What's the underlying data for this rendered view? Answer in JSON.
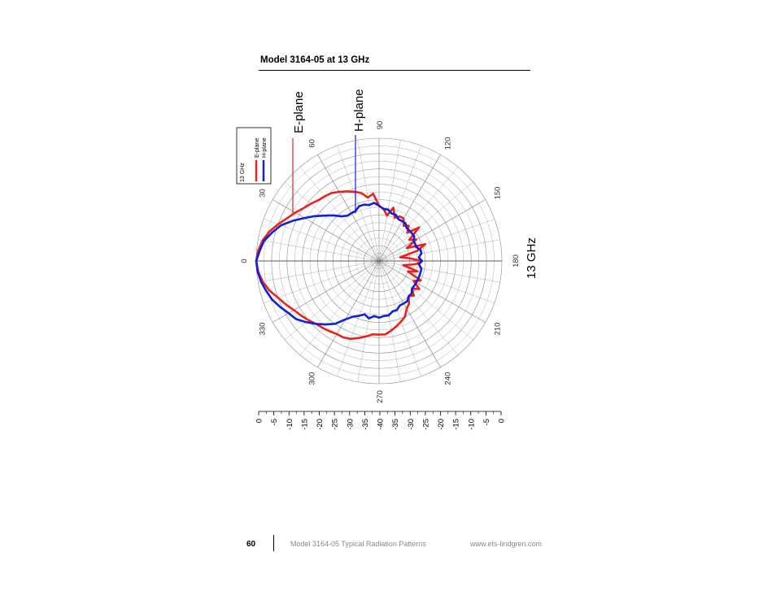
{
  "header": {
    "title": "Model 3164-05 at 13 GHz"
  },
  "footer": {
    "page_number": "60",
    "document": "Model 3164-05 Typical Radiation Patterns",
    "url": "www.ets-lindgren.com"
  },
  "colors": {
    "e_plane": "#e8231c",
    "h_plane": "#1220d8",
    "grid": "#8c8c8c"
  },
  "chart_data": {
    "type": "polar",
    "frequency_label": "13 GHz",
    "legend": {
      "title": "13 GHz",
      "entries": [
        "E-plane",
        "H-plane"
      ],
      "placement": "top-left"
    },
    "callouts": [
      "E-plane",
      "H-plane"
    ],
    "angle_labels": [
      "0",
      "30",
      "60",
      "90",
      "120",
      "150",
      "180",
      "210",
      "240",
      "270",
      "300",
      "330"
    ],
    "scale_labels": [
      "0",
      "-5",
      "-10",
      "-15",
      "-20",
      "-25",
      "-30",
      "-35",
      "-40",
      "-35",
      "-30",
      "-25",
      "-20",
      "-15",
      "-10",
      "-5",
      "0"
    ],
    "r_range_db": [
      -40,
      0
    ],
    "angle_step_deg": 10,
    "series": [
      {
        "name": "E-plane",
        "color": "#e8231c",
        "angles": [
          0,
          5,
          10,
          15,
          20,
          25,
          30,
          35,
          40,
          45,
          50,
          55,
          60,
          65,
          70,
          75,
          80,
          85,
          90,
          95,
          100,
          105,
          110,
          115,
          120,
          125,
          130,
          135,
          140,
          145,
          150,
          155,
          160,
          165,
          170,
          175,
          180,
          185,
          190,
          195,
          200,
          205,
          210,
          215,
          220,
          225,
          230,
          235,
          240,
          245,
          250,
          255,
          260,
          265,
          270,
          275,
          280,
          285,
          290,
          295,
          300,
          305,
          310,
          315,
          320,
          325,
          330,
          335,
          340,
          345,
          350,
          355
        ],
        "values_db": [
          0,
          -0.5,
          -1.5,
          -3,
          -5,
          -7,
          -8.5,
          -10,
          -11,
          -12,
          -12.5,
          -13,
          -14,
          -15,
          -16,
          -17,
          -19,
          -18,
          -22,
          -23,
          -25,
          -22,
          -25,
          -24,
          -24,
          -26,
          -25,
          -27,
          -23,
          -28,
          -26,
          -30,
          -24,
          -27,
          -33,
          -30,
          -26,
          -28,
          -32,
          -27,
          -30,
          -25,
          -27,
          -24,
          -26,
          -24,
          -25,
          -23,
          -22,
          -20,
          -19,
          -18,
          -17,
          -16,
          -16,
          -16,
          -15,
          -14,
          -13,
          -12.5,
          -12.5,
          -12,
          -11.5,
          -11,
          -10,
          -9,
          -8,
          -6.5,
          -5,
          -3,
          -1.5,
          -0.5
        ]
      },
      {
        "name": "H-plane",
        "color": "#1220d8",
        "angles": [
          0,
          5,
          10,
          15,
          20,
          25,
          30,
          35,
          40,
          45,
          50,
          55,
          60,
          65,
          70,
          75,
          80,
          85,
          90,
          95,
          100,
          105,
          110,
          115,
          120,
          125,
          130,
          135,
          140,
          145,
          150,
          155,
          160,
          165,
          170,
          175,
          180,
          185,
          190,
          195,
          200,
          205,
          210,
          215,
          220,
          225,
          230,
          235,
          240,
          245,
          250,
          255,
          260,
          265,
          270,
          275,
          280,
          285,
          290,
          295,
          300,
          305,
          310,
          315,
          320,
          325,
          330,
          335,
          340,
          345,
          350,
          355
        ],
        "values_db": [
          0,
          -1,
          -2,
          -4,
          -6,
          -9,
          -12,
          -14.5,
          -17,
          -19,
          -21,
          -22,
          -22,
          -22,
          -21,
          -21,
          -21.5,
          -21,
          -22,
          -23,
          -23,
          -24,
          -24,
          -25,
          -25,
          -25,
          -26,
          -26,
          -26,
          -26,
          -27,
          -27,
          -27,
          -26,
          -26,
          -27,
          -26,
          -27,
          -26,
          -26,
          -26,
          -26,
          -26,
          -26,
          -26,
          -25,
          -25,
          -24,
          -24,
          -24,
          -23,
          -23,
          -22,
          -22,
          -21.5,
          -22,
          -21,
          -22,
          -21,
          -20,
          -18,
          -15,
          -13,
          -11,
          -9,
          -7,
          -6,
          -4.5,
          -3,
          -2,
          -1,
          -0.3
        ]
      }
    ]
  }
}
